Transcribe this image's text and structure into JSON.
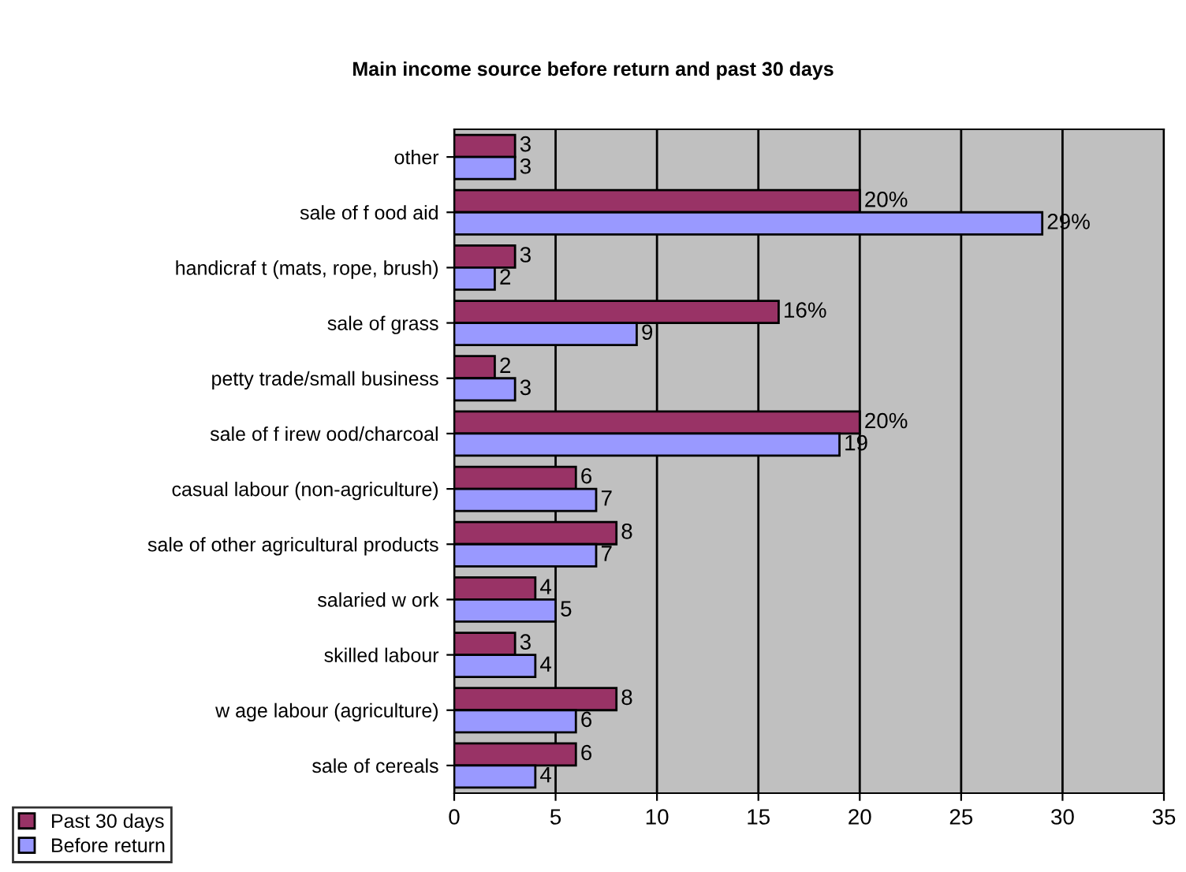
{
  "chart_data": {
    "type": "bar",
    "orientation": "horizontal",
    "title": "Main income source before return and past 30 days",
    "categories": [
      "other",
      "sale of f ood aid",
      "handicraf t (mats, rope, brush)",
      "sale of grass",
      "petty trade/small business",
      "sale of f irew ood/charcoal",
      "casual labour (non-agriculture)",
      "sale of other agricultural products",
      "salaried w ork",
      "skilled labour",
      "w age labour (agriculture)",
      "sale of cereals"
    ],
    "series": [
      {
        "name": "Past 30 days",
        "color": "#993366",
        "values": [
          3,
          20,
          3,
          16,
          2,
          20,
          6,
          8,
          4,
          3,
          8,
          6
        ],
        "value_labels": [
          "3",
          "20%",
          "3",
          "16%",
          "2",
          "20%",
          "6",
          "8",
          "4",
          "3",
          "8",
          "6"
        ]
      },
      {
        "name": "Before return",
        "color": "#9999ff",
        "values": [
          3,
          29,
          2,
          9,
          3,
          19,
          7,
          7,
          5,
          4,
          6,
          4
        ],
        "value_labels": [
          "3",
          "29%",
          "2",
          "9",
          "3",
          "19",
          "7",
          "7",
          "5",
          "4",
          "6",
          "4"
        ]
      }
    ],
    "xlim": [
      0,
      35
    ],
    "xticks": [
      0,
      5,
      10,
      15,
      20,
      25,
      30,
      35
    ],
    "grid": "x",
    "legend": "bottom left"
  }
}
